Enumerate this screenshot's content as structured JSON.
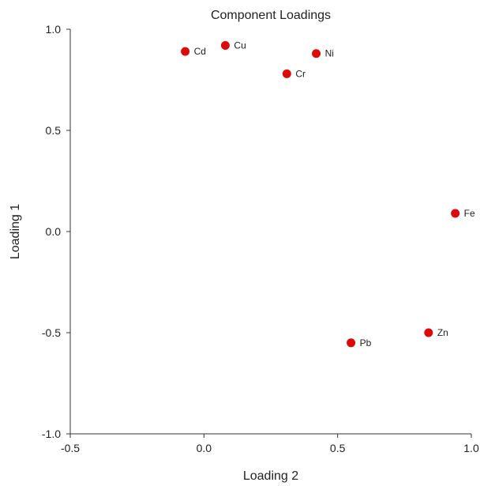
{
  "chart_data": {
    "type": "scatter",
    "title": "Component Loadings",
    "xlabel": "Loading 2",
    "ylabel": "Loading 1",
    "xlim": [
      -0.5,
      1.0
    ],
    "ylim": [
      -1.0,
      1.0
    ],
    "x_ticks": [
      -0.5,
      0.0,
      0.5,
      1.0
    ],
    "y_ticks": [
      -1.0,
      -0.5,
      0.0,
      0.5,
      1.0
    ],
    "x_tick_labels": [
      "-0.5",
      "0.0",
      "0.5",
      "1.0"
    ],
    "y_tick_labels": [
      "-1.0",
      "-0.5",
      "0.0",
      "0.5",
      "1.0"
    ],
    "grid": false,
    "marker_color": "#dd0a0a",
    "points": [
      {
        "label": "Cd",
        "x": -0.07,
        "y": 0.89
      },
      {
        "label": "Cu",
        "x": 0.08,
        "y": 0.92
      },
      {
        "label": "Ni",
        "x": 0.42,
        "y": 0.88
      },
      {
        "label": "Cr",
        "x": 0.31,
        "y": 0.78
      },
      {
        "label": "Fe",
        "x": 0.94,
        "y": 0.09
      },
      {
        "label": "Zn",
        "x": 0.84,
        "y": -0.5
      },
      {
        "label": "Pb",
        "x": 0.55,
        "y": -0.55
      }
    ]
  }
}
